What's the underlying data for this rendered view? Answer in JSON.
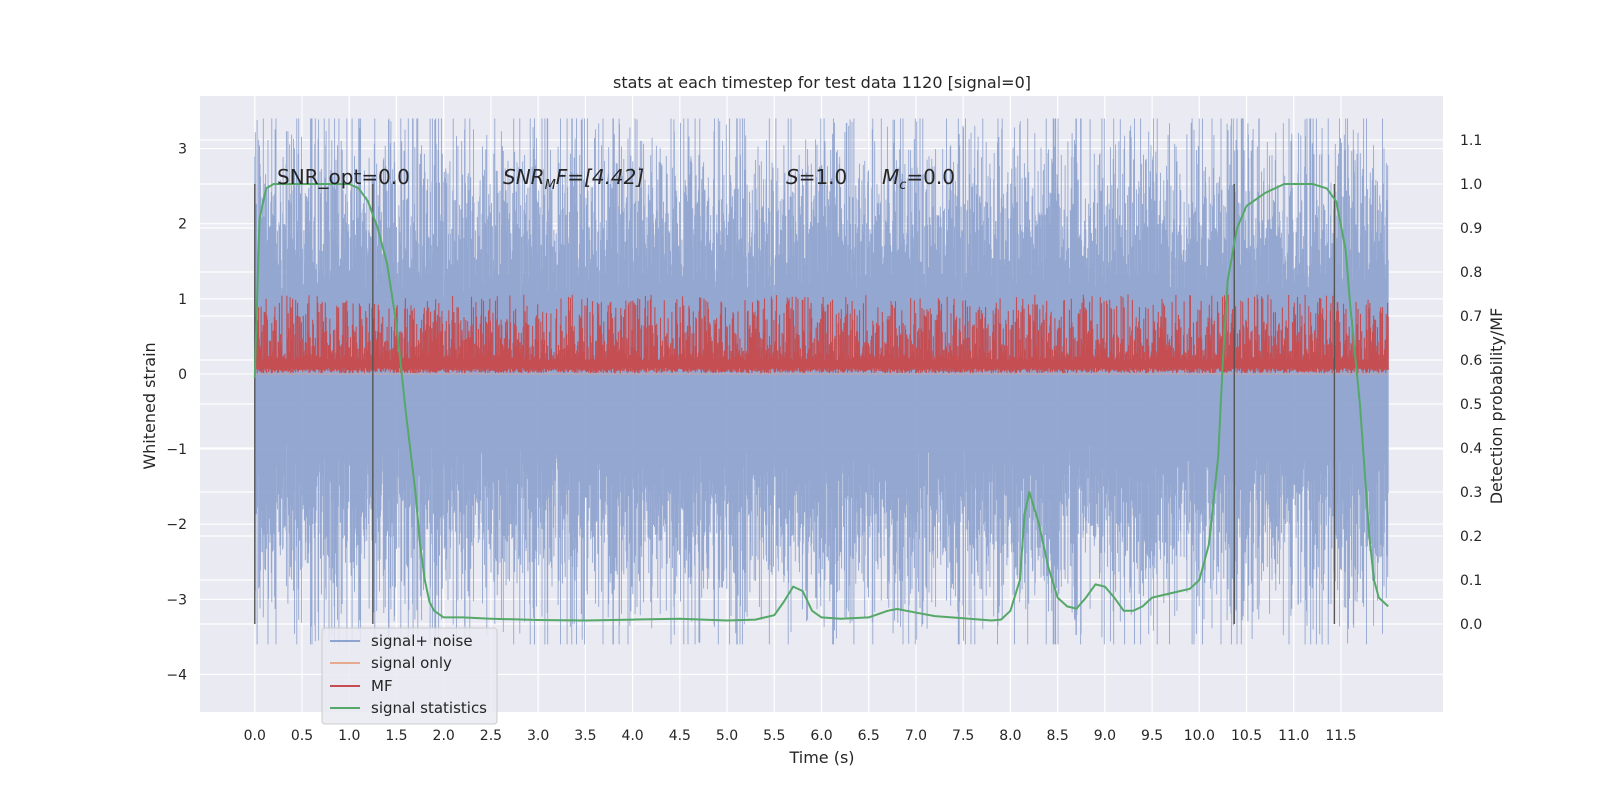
{
  "chart_data": {
    "type": "line",
    "title": "stats at each timestep for test data 1120 [signal=0]",
    "xlabel": "Time (s)",
    "ylabel_left": "Whitened strain",
    "ylabel_right": "Detection probability/MF",
    "xlim": [
      -0.58,
      12.58
    ],
    "ylim_left": [
      -4.5,
      3.7
    ],
    "ylim_right": [
      -0.2,
      1.2
    ],
    "x_ticks": [
      "0.0",
      "0.5",
      "1.0",
      "1.5",
      "2.0",
      "2.5",
      "3.0",
      "3.5",
      "4.0",
      "4.5",
      "5.0",
      "5.5",
      "6.0",
      "6.5",
      "7.0",
      "7.5",
      "8.0",
      "8.5",
      "9.0",
      "9.5",
      "10.0",
      "10.5",
      "11.0",
      "11.5"
    ],
    "y_ticks_left": [
      "3",
      "2",
      "1",
      "0",
      "−1",
      "−2",
      "−3",
      "−4"
    ],
    "y_ticks_right": [
      "1.1",
      "1.0",
      "0.9",
      "0.8",
      "0.7",
      "0.6",
      "0.5",
      "0.4",
      "0.3",
      "0.2",
      "0.1",
      "0.0"
    ],
    "grid": true,
    "annotations": {
      "snr_opt": "SNR_opt=0.0",
      "snr_mf_main": "SNR",
      "snr_mf_sub": "M",
      "snr_mf_rest": "F=[4.42]",
      "s_main": "S",
      "s_rest": "=1.0",
      "mc_main": "M",
      "mc_sub": "c",
      "mc_rest": "=0.0"
    },
    "vlines_x": [
      0.0,
      1.25,
      10.37,
      11.43
    ],
    "vlines_range_right": [
      0.0,
      1.0
    ],
    "legend_position": "lower-left",
    "series": [
      {
        "name": "signal+ noise",
        "color": "#8fa3cf",
        "axis": "left",
        "style": "noise-band",
        "x_range": [
          0.0,
          12.0
        ],
        "envelope_left": [
          -2.5,
          2.5
        ]
      },
      {
        "name": "signal only",
        "color": "#e7a98f",
        "axis": "left",
        "style": "line",
        "x": [
          0.0,
          12.0
        ],
        "y": [
          0.0,
          0.0
        ]
      },
      {
        "name": "MF",
        "color": "#c44e52",
        "axis": "right",
        "style": "noise-band",
        "x_range": [
          0.0,
          12.0
        ],
        "envelope_right": [
          0.57,
          0.72
        ]
      },
      {
        "name": "signal statistics",
        "color": "#55a868",
        "axis": "right",
        "x": [
          0.0,
          0.05,
          0.12,
          0.2,
          0.4,
          0.7,
          1.0,
          1.1,
          1.2,
          1.3,
          1.4,
          1.5,
          1.6,
          1.7,
          1.75,
          1.8,
          1.85,
          1.9,
          2.0,
          2.2,
          2.5,
          3.0,
          3.5,
          4.0,
          4.5,
          5.0,
          5.3,
          5.5,
          5.6,
          5.7,
          5.8,
          5.9,
          6.0,
          6.2,
          6.5,
          6.7,
          6.8,
          6.9,
          7.2,
          7.5,
          7.8,
          7.9,
          8.0,
          8.1,
          8.15,
          8.2,
          8.3,
          8.4,
          8.5,
          8.6,
          8.7,
          8.8,
          8.9,
          9.0,
          9.1,
          9.2,
          9.3,
          9.4,
          9.5,
          9.8,
          9.9,
          10.0,
          10.1,
          10.2,
          10.25,
          10.3,
          10.4,
          10.5,
          10.7,
          10.9,
          11.0,
          11.2,
          11.35,
          11.45,
          11.55,
          11.6,
          11.7,
          11.75,
          11.8,
          11.85,
          11.9,
          12.0
        ],
        "y": [
          0.56,
          0.92,
          0.99,
          1.0,
          1.0,
          1.0,
          1.0,
          0.99,
          0.96,
          0.9,
          0.82,
          0.68,
          0.48,
          0.3,
          0.18,
          0.1,
          0.05,
          0.03,
          0.015,
          0.015,
          0.012,
          0.009,
          0.008,
          0.01,
          0.012,
          0.008,
          0.01,
          0.02,
          0.05,
          0.085,
          0.075,
          0.03,
          0.015,
          0.012,
          0.015,
          0.03,
          0.034,
          0.03,
          0.018,
          0.013,
          0.008,
          0.01,
          0.03,
          0.1,
          0.25,
          0.3,
          0.23,
          0.13,
          0.06,
          0.04,
          0.035,
          0.06,
          0.09,
          0.085,
          0.06,
          0.03,
          0.03,
          0.04,
          0.06,
          0.075,
          0.08,
          0.1,
          0.18,
          0.38,
          0.6,
          0.78,
          0.9,
          0.95,
          0.98,
          1.0,
          1.0,
          1.0,
          0.99,
          0.96,
          0.85,
          0.72,
          0.5,
          0.35,
          0.2,
          0.1,
          0.06,
          0.04
        ]
      }
    ],
    "legend_entries": [
      "signal+ noise",
      "signal only",
      "MF",
      "signal statistics"
    ]
  }
}
